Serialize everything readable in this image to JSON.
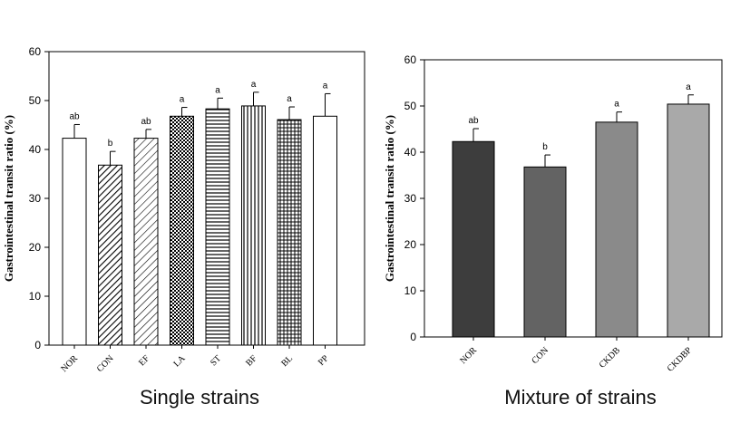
{
  "chart_data": [
    {
      "type": "bar",
      "title": "",
      "caption": "Single strains",
      "ylabel": "Gastrointestinal transit ratio (%)",
      "xlabel": "",
      "ylim": [
        0,
        60
      ],
      "yticks": [
        0,
        10,
        20,
        30,
        40,
        50,
        60
      ],
      "categories": [
        "NOR",
        "CON",
        "EF",
        "LA",
        "ST",
        "BF",
        "BL",
        "PP"
      ],
      "values": [
        42.3,
        36.8,
        42.3,
        46.8,
        48.3,
        48.9,
        46.1,
        46.8
      ],
      "errors": [
        2.8,
        2.8,
        1.8,
        1.8,
        2.2,
        2.8,
        2.6,
        4.6
      ],
      "significance": [
        "ab",
        "b",
        "ab",
        "a",
        "a",
        "a",
        "a",
        "a"
      ],
      "fills": [
        "white",
        "diagonal-dense",
        "diagonal-sparse",
        "checker-dense",
        "horizontal-lines",
        "vertical-lines",
        "grid",
        "white"
      ],
      "grid": false
    },
    {
      "type": "bar",
      "title": "",
      "caption": "Mixture of strains",
      "ylabel": "Gastrointestinal transit ratio (%)",
      "xlabel": "",
      "ylim": [
        0,
        60
      ],
      "yticks": [
        0,
        10,
        20,
        30,
        40,
        50,
        60
      ],
      "categories": [
        "NOR",
        "CON",
        "CKDB",
        "CKDBP"
      ],
      "values": [
        42.3,
        36.8,
        46.5,
        50.4
      ],
      "errors": [
        2.8,
        2.6,
        2.2,
        2.0
      ],
      "significance": [
        "ab",
        "b",
        "a",
        "a"
      ],
      "colors": [
        "#3d3d3d",
        "#636363",
        "#8a8a8a",
        "#a9a9a9"
      ],
      "grid": false
    }
  ]
}
